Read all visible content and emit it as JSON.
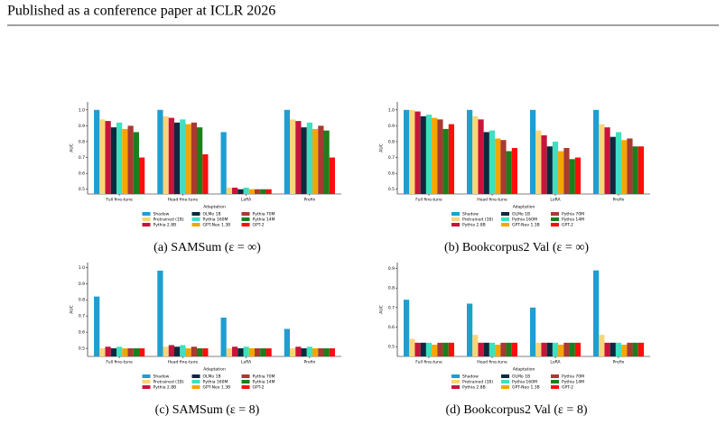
{
  "header": "Published as a conference paper at ICLR 2026",
  "chart_data": [
    {
      "type": "bar",
      "caption": "(a) SAMSum (ε = ∞)",
      "xlabel": "Adaptation",
      "ylabel": "AUC",
      "legend": "below",
      "categories": [
        "Full fine-tune",
        "Head fine-tune",
        "LoRA",
        "Prefix"
      ],
      "ylim": [
        0.47,
        1.05
      ],
      "yticks": [
        0.5,
        0.6,
        0.7,
        0.8,
        0.9,
        {
          "value": 1.0,
          "label": "1.0"
        }
      ],
      "series": [
        {
          "name": "Shadow",
          "color": "#1f9ed1",
          "values": [
            1.0,
            1.0,
            0.86,
            1.0
          ]
        },
        {
          "name": "Pretrained (1B)",
          "color": "#f7d57a",
          "values": [
            0.94,
            0.96,
            0.51,
            0.94
          ]
        },
        {
          "name": "Pythia 2.8B",
          "color": "#c8143c",
          "values": [
            0.93,
            0.95,
            0.51,
            0.93
          ]
        },
        {
          "name": "OLMo 1B",
          "color": "#0b2a3f",
          "values": [
            0.89,
            0.92,
            0.5,
            0.89
          ]
        },
        {
          "name": "Pythia 160M",
          "color": "#3de0c0",
          "values": [
            0.92,
            0.94,
            0.51,
            0.92
          ]
        },
        {
          "name": "GPT-Neo 1.3B",
          "color": "#f5a500",
          "values": [
            0.88,
            0.91,
            0.5,
            0.88
          ]
        },
        {
          "name": "Pythia 70M",
          "color": "#a83a32",
          "values": [
            0.9,
            0.92,
            0.5,
            0.9
          ]
        },
        {
          "name": "Pythia 14M",
          "color": "#1b7f1b",
          "values": [
            0.86,
            0.89,
            0.5,
            0.87
          ]
        },
        {
          "name": "GPT-2",
          "color": "#ff0d0d",
          "values": [
            0.7,
            0.72,
            0.5,
            0.7
          ]
        }
      ]
    },
    {
      "type": "bar",
      "caption": "(b) Bookcorpus2 Val (ε = ∞)",
      "xlabel": "Adaptation",
      "ylabel": "AUC",
      "legend": "below",
      "categories": [
        "Full fine-tune",
        "Head fine-tune",
        "LoRA",
        "Prefix"
      ],
      "ylim": [
        0.47,
        1.05
      ],
      "yticks": [
        0.5,
        0.6,
        0.7,
        0.8,
        0.9,
        {
          "value": 1.0,
          "label": "1.0"
        }
      ],
      "series": [
        {
          "name": "Shadow",
          "color": "#1f9ed1",
          "values": [
            1.0,
            1.0,
            1.0,
            1.0
          ]
        },
        {
          "name": "Pretrained (1B)",
          "color": "#f7d57a",
          "values": [
            1.0,
            0.96,
            0.87,
            0.91
          ]
        },
        {
          "name": "Pythia 2.8B",
          "color": "#c8143c",
          "values": [
            0.99,
            0.94,
            0.84,
            0.89
          ]
        },
        {
          "name": "OLMo 1B",
          "color": "#0b2a3f",
          "values": [
            0.96,
            0.86,
            0.77,
            0.83
          ]
        },
        {
          "name": "Pythia 160M",
          "color": "#3de0c0",
          "values": [
            0.97,
            0.87,
            0.8,
            0.86
          ]
        },
        {
          "name": "GPT-Neo 1.3B",
          "color": "#f5a500",
          "values": [
            0.95,
            0.82,
            0.74,
            0.81
          ]
        },
        {
          "name": "Pythia 70M",
          "color": "#a83a32",
          "values": [
            0.94,
            0.81,
            0.76,
            0.82
          ]
        },
        {
          "name": "Pythia 14M",
          "color": "#1b7f1b",
          "values": [
            0.88,
            0.74,
            0.69,
            0.77
          ]
        },
        {
          "name": "GPT-2",
          "color": "#ff0d0d",
          "values": [
            0.91,
            0.76,
            0.7,
            0.77
          ]
        }
      ]
    },
    {
      "type": "bar",
      "caption": "(c) SAMSum (ε = 8)",
      "xlabel": "Adaptation",
      "ylabel": "AUC",
      "legend": "below",
      "categories": [
        "Full fine-tune",
        "Head fine-tune",
        "LoRA",
        "Prefix"
      ],
      "ylim": [
        0.45,
        1.03
      ],
      "yticks": [
        0.5,
        0.6,
        0.7,
        0.8,
        0.9,
        {
          "value": 1.0,
          "label": "1.0"
        }
      ],
      "series": [
        {
          "name": "Shadow",
          "color": "#1f9ed1",
          "values": [
            0.82,
            0.98,
            0.69,
            0.62
          ]
        },
        {
          "name": "Pretrained (1B)",
          "color": "#f7d57a",
          "values": [
            0.5,
            0.51,
            0.5,
            0.5
          ]
        },
        {
          "name": "Pythia 2.8B",
          "color": "#c8143c",
          "values": [
            0.51,
            0.52,
            0.51,
            0.51
          ]
        },
        {
          "name": "OLMo 1B",
          "color": "#0b2a3f",
          "values": [
            0.5,
            0.51,
            0.5,
            0.5
          ]
        },
        {
          "name": "Pythia 160M",
          "color": "#3de0c0",
          "values": [
            0.51,
            0.52,
            0.51,
            0.51
          ]
        },
        {
          "name": "GPT-Neo 1.3B",
          "color": "#f5a500",
          "values": [
            0.5,
            0.5,
            0.5,
            0.5
          ]
        },
        {
          "name": "Pythia 70M",
          "color": "#a83a32",
          "values": [
            0.5,
            0.51,
            0.5,
            0.5
          ]
        },
        {
          "name": "Pythia 14M",
          "color": "#1b7f1b",
          "values": [
            0.5,
            0.5,
            0.5,
            0.5
          ]
        },
        {
          "name": "GPT-2",
          "color": "#ff0d0d",
          "values": [
            0.5,
            0.5,
            0.5,
            0.5
          ]
        }
      ]
    },
    {
      "type": "bar",
      "caption": "(d) Bookcorpus2 Val (ε = 8)",
      "xlabel": "Adaptation",
      "ylabel": "AUC",
      "legend": "below",
      "categories": [
        "Full fine-tune",
        "Head fine-tune",
        "LoRA",
        "Prefix"
      ],
      "ylim": [
        0.45,
        0.93
      ],
      "yticks": [
        0.5,
        0.6,
        0.7,
        0.8,
        0.9
      ],
      "series": [
        {
          "name": "Shadow",
          "color": "#1f9ed1",
          "values": [
            0.74,
            0.72,
            0.7,
            0.89
          ]
        },
        {
          "name": "Pretrained (1B)",
          "color": "#f7d57a",
          "values": [
            0.54,
            0.56,
            0.52,
            0.56
          ]
        },
        {
          "name": "Pythia 2.8B",
          "color": "#c8143c",
          "values": [
            0.52,
            0.52,
            0.52,
            0.52
          ]
        },
        {
          "name": "OLMo 1B",
          "color": "#0b2a3f",
          "values": [
            0.52,
            0.52,
            0.52,
            0.52
          ]
        },
        {
          "name": "Pythia 160M",
          "color": "#3de0c0",
          "values": [
            0.52,
            0.52,
            0.52,
            0.52
          ]
        },
        {
          "name": "GPT-Neo 1.3B",
          "color": "#f5a500",
          "values": [
            0.51,
            0.51,
            0.51,
            0.51
          ]
        },
        {
          "name": "Pythia 70M",
          "color": "#a83a32",
          "values": [
            0.52,
            0.52,
            0.52,
            0.52
          ]
        },
        {
          "name": "Pythia 14M",
          "color": "#1b7f1b",
          "values": [
            0.52,
            0.52,
            0.52,
            0.52
          ]
        },
        {
          "name": "GPT-2",
          "color": "#ff0d0d",
          "values": [
            0.52,
            0.52,
            0.52,
            0.52
          ]
        }
      ]
    }
  ]
}
